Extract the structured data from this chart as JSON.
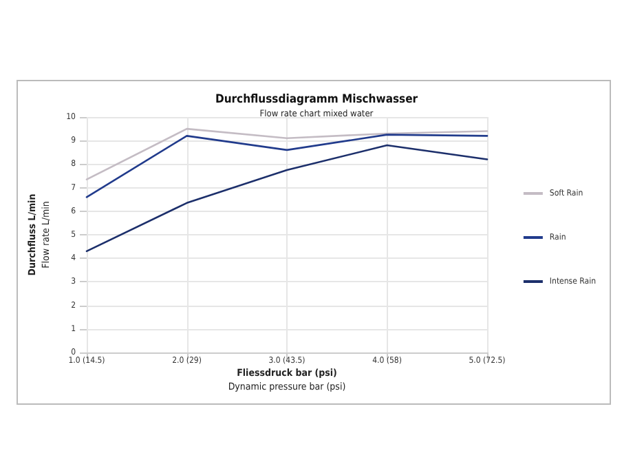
{
  "chart_data": {
    "type": "line",
    "title": "Durchflussdiagramm Mischwasser",
    "subtitle": "Flow rate chart mixed water",
    "xlabel": "Fliessdruck bar (psi)\nDynamic pressure bar (psi)",
    "ylabel": "Durchfluss L/min\nFlow rate L/min",
    "categories": [
      "1.0 (14.5)",
      "2.0 (29)",
      "3.0 (43.5)",
      "4.0 (58)",
      "5.0 (72.5)"
    ],
    "series": [
      {
        "name": "Soft Rain",
        "color": "#c4bcc4",
        "values": [
          7.35,
          9.5,
          9.1,
          9.3,
          9.4
        ]
      },
      {
        "name": "Rain",
        "color": "#213b8c",
        "values": [
          6.6,
          9.2,
          8.6,
          9.25,
          9.2
        ]
      },
      {
        "name": "Intense Rain",
        "color": "#1c2f6b",
        "values": [
          4.3,
          6.35,
          7.75,
          8.8,
          8.2
        ]
      }
    ],
    "ylim": [
      0,
      10
    ],
    "yticks": [
      0,
      1,
      2,
      3,
      4,
      5,
      6,
      7,
      8,
      9,
      10
    ],
    "grid": true,
    "legend": "right",
    "marker": "none",
    "line_style": "solid"
  }
}
